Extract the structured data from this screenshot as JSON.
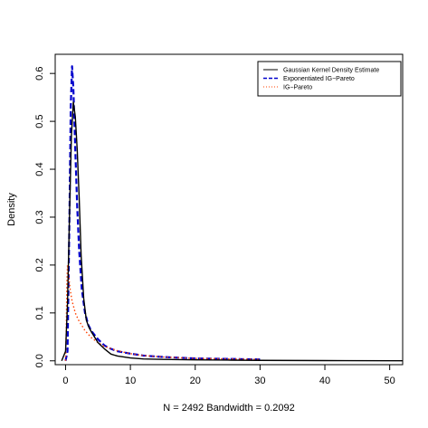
{
  "chart_data": {
    "type": "line",
    "title": "",
    "xlabel": "N = 2492   Bandwidth = 0.2092",
    "ylabel": "Density",
    "xlim": [
      -1.6,
      52
    ],
    "ylim": [
      -0.008,
      0.64
    ],
    "x_ticks": [
      0,
      10,
      20,
      30,
      40,
      50
    ],
    "y_ticks": [
      0.0,
      0.1,
      0.2,
      0.3,
      0.4,
      0.5,
      0.6
    ],
    "x_tick_labels": [
      "0",
      "10",
      "20",
      "30",
      "40",
      "50"
    ],
    "y_tick_labels": [
      "0.0",
      "0.1",
      "0.2",
      "0.3",
      "0.4",
      "0.5",
      "0.6"
    ],
    "grid": false,
    "legend_position": "top-right",
    "series": [
      {
        "name": "Gaussian Kernel Density Estimate",
        "color": "#000000",
        "style": "solid",
        "x": [
          -0.6,
          0,
          0.3,
          0.6,
          0.9,
          1.2,
          1.5,
          1.8,
          2.1,
          2.4,
          2.8,
          3.2,
          3.6,
          4.0,
          5.0,
          6.0,
          7.0,
          8.0,
          10.0,
          12.0,
          15.0,
          20.0,
          25.0,
          30.0,
          40.0,
          52.0
        ],
        "y": [
          0.0,
          0.02,
          0.12,
          0.3,
          0.47,
          0.54,
          0.51,
          0.44,
          0.34,
          0.22,
          0.13,
          0.085,
          0.07,
          0.06,
          0.038,
          0.025,
          0.014,
          0.01,
          0.006,
          0.004,
          0.003,
          0.002,
          0.0015,
          0.001,
          0.0005,
          0.0002
        ]
      },
      {
        "name": "Exponentiated IG−Pareto",
        "color": "#0000cc",
        "style": "dashed",
        "x": [
          0,
          0.3,
          0.6,
          0.8,
          1.0,
          1.2,
          1.5,
          1.8,
          2.1,
          2.5,
          3.0,
          3.5,
          4.0,
          5.0,
          6.0,
          7.0,
          8.0,
          10.0,
          12.0,
          15.0,
          20.0,
          25.0,
          30.0
        ],
        "y": [
          0.0,
          0.02,
          0.3,
          0.53,
          0.615,
          0.57,
          0.44,
          0.32,
          0.23,
          0.15,
          0.1,
          0.075,
          0.062,
          0.045,
          0.032,
          0.025,
          0.02,
          0.015,
          0.011,
          0.008,
          0.005,
          0.004,
          0.003
        ]
      },
      {
        "name": "IG−Pareto",
        "color": "#ff4000",
        "style": "dotted",
        "x": [
          0,
          0.1,
          0.2,
          0.3,
          0.4,
          0.5,
          0.7,
          1.0,
          1.5,
          2.0,
          3.0,
          4.0,
          5.0,
          6.0,
          8.0,
          10.0,
          12.0,
          15.0,
          20.0,
          25.0,
          30.0
        ],
        "y": [
          0.0,
          0.06,
          0.16,
          0.2,
          0.19,
          0.175,
          0.15,
          0.125,
          0.1,
          0.085,
          0.063,
          0.048,
          0.038,
          0.03,
          0.021,
          0.015,
          0.011,
          0.008,
          0.005,
          0.004,
          0.003
        ]
      }
    ]
  }
}
